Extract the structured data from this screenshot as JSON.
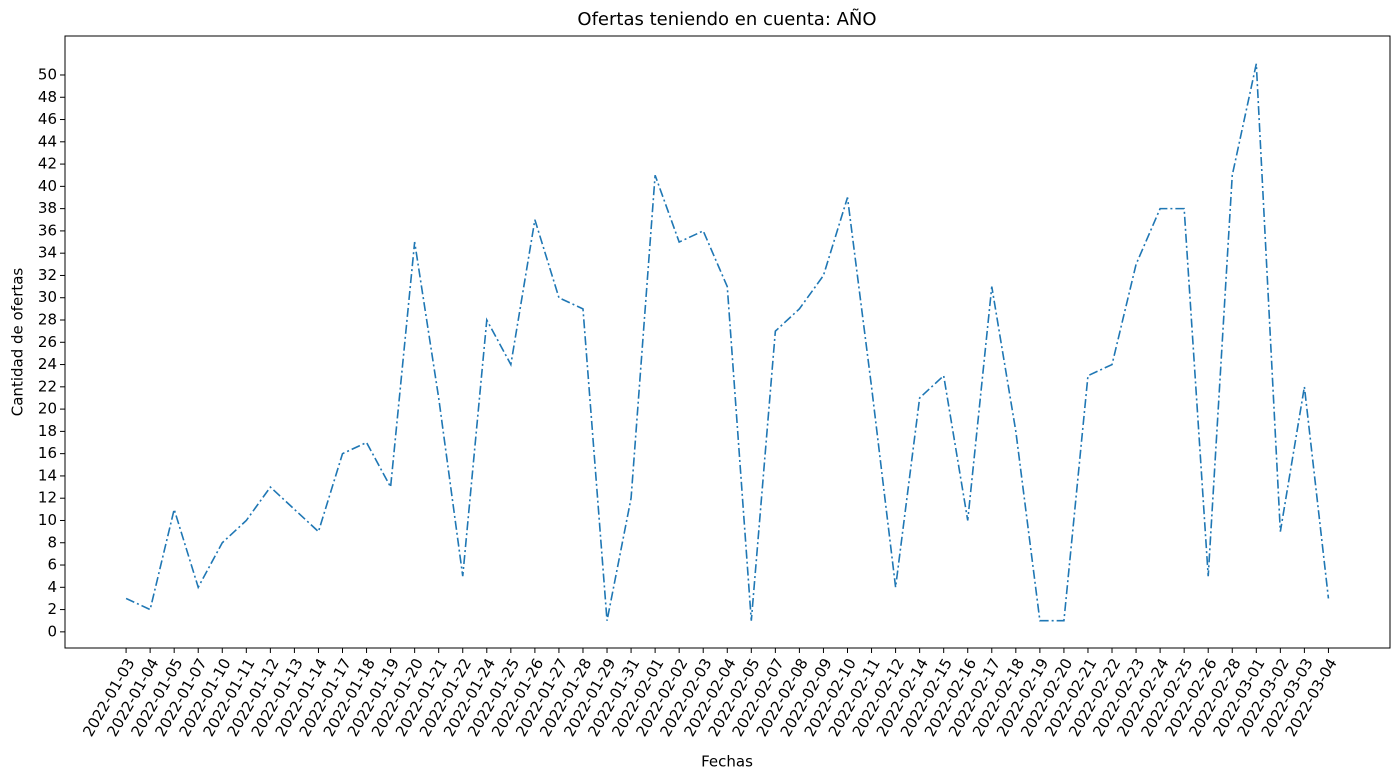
{
  "chart_data": {
    "type": "line",
    "title": "Ofertas teniendo en cuenta: AÑO",
    "xlabel": "Fechas",
    "ylabel": "Cantidad de ofertas",
    "categories": [
      "2022-01-03",
      "2022-01-04",
      "2022-01-05",
      "2022-01-07",
      "2022-01-10",
      "2022-01-11",
      "2022-01-12",
      "2022-01-13",
      "2022-01-14",
      "2022-01-17",
      "2022-01-18",
      "2022-01-19",
      "2022-01-20",
      "2022-01-21",
      "2022-01-22",
      "2022-01-24",
      "2022-01-25",
      "2022-01-26",
      "2022-01-27",
      "2022-01-28",
      "2022-01-29",
      "2022-01-31",
      "2022-02-01",
      "2022-02-02",
      "2022-02-03",
      "2022-02-04",
      "2022-02-05",
      "2022-02-07",
      "2022-02-08",
      "2022-02-09",
      "2022-02-10",
      "2022-02-11",
      "2022-02-12",
      "2022-02-14",
      "2022-02-15",
      "2022-02-16",
      "2022-02-17",
      "2022-02-18",
      "2022-02-19",
      "2022-02-20",
      "2022-02-21",
      "2022-02-22",
      "2022-02-23",
      "2022-02-24",
      "2022-02-25",
      "2022-02-26",
      "2022-02-28",
      "2022-03-01",
      "2022-03-02",
      "2022-03-03",
      "2022-03-04"
    ],
    "values": [
      3,
      2,
      11,
      4,
      8,
      10,
      13,
      11,
      9,
      16,
      17,
      13,
      35,
      21,
      5,
      28,
      24,
      37,
      30,
      29,
      1,
      12,
      41,
      35,
      36,
      31,
      1,
      27,
      29,
      32,
      39,
      22,
      4,
      21,
      23,
      10,
      31,
      18,
      1,
      1,
      23,
      24,
      33,
      38,
      38,
      5,
      41,
      51,
      9,
      22,
      3
    ],
    "color": "#1f77b4",
    "line_style": "dashdot",
    "ylim": [
      -1.45,
      53.5
    ],
    "yticks": [
      0,
      2,
      4,
      6,
      8,
      10,
      12,
      14,
      16,
      18,
      20,
      22,
      24,
      26,
      28,
      30,
      32,
      34,
      36,
      38,
      40,
      42,
      44,
      46,
      48,
      50
    ],
    "grid": false
  }
}
